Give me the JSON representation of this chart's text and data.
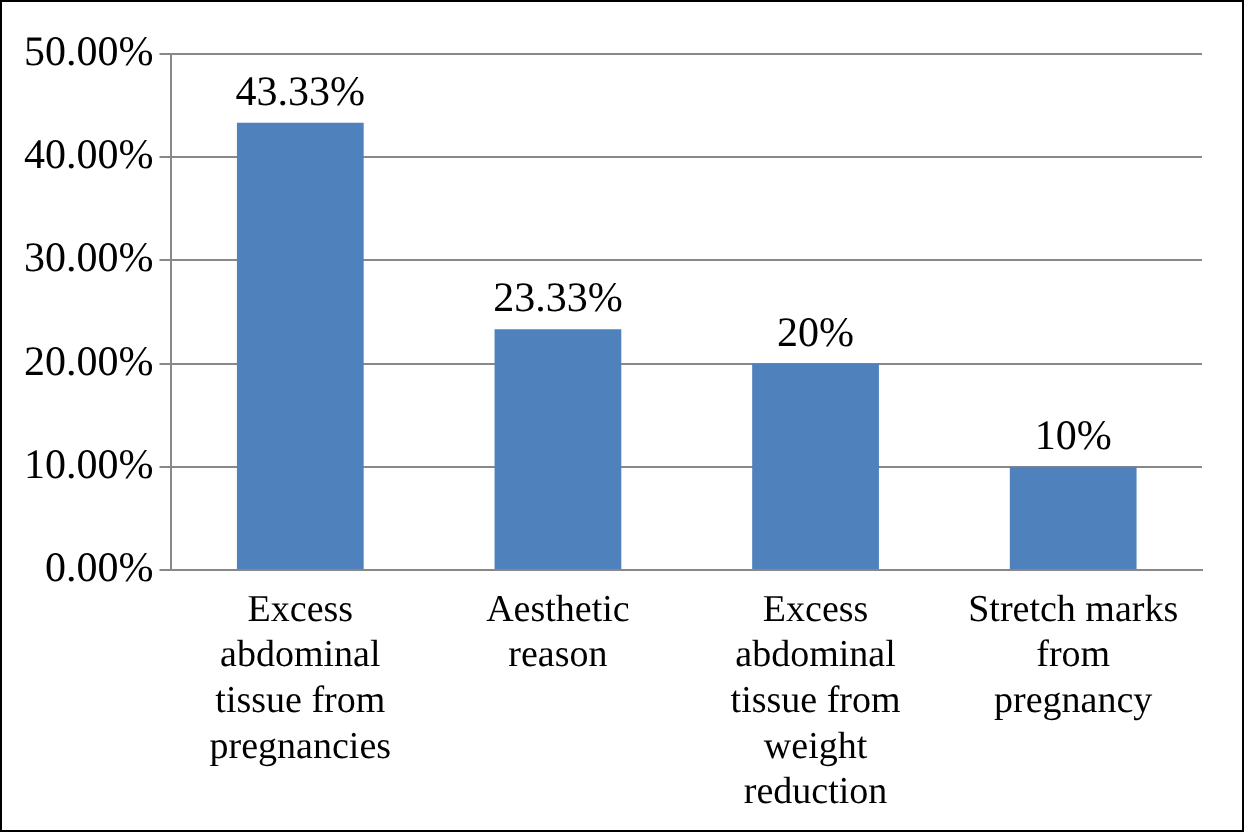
{
  "chart_data": {
    "type": "bar",
    "categories": [
      "Excess abdominal tissue from pregnancies",
      "Aesthetic reason",
      "Excess abdominal tissue from weight reduction",
      "Stretch marks from pregnancy"
    ],
    "values": [
      43.33,
      23.33,
      20,
      10
    ],
    "value_labels": [
      "43.33%",
      "23.33%",
      "20%",
      "10%"
    ],
    "color": "#4f81bd",
    "ylim": [
      0,
      50
    ],
    "yticks": [
      {
        "value": 0,
        "label": "0.00%"
      },
      {
        "value": 10,
        "label": "10.00%"
      },
      {
        "value": 20,
        "label": "20.00%"
      },
      {
        "value": 30,
        "label": "30.00%"
      },
      {
        "value": 40,
        "label": "40.00%"
      },
      {
        "value": 50,
        "label": "50.00%"
      }
    ],
    "grid": "y",
    "legend": false
  }
}
